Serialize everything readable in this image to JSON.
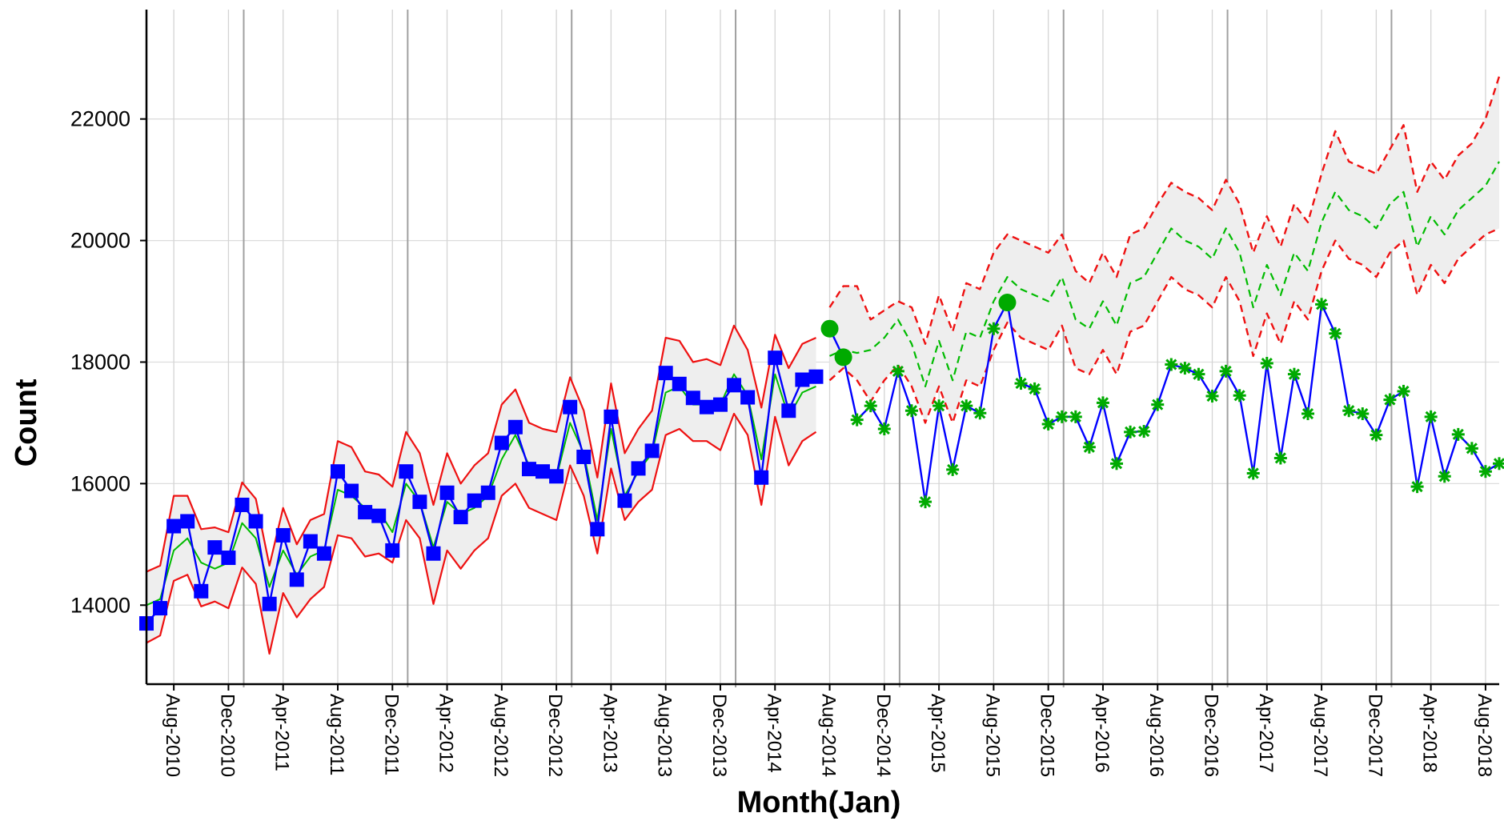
{
  "chart_data": {
    "type": "line",
    "title": "",
    "xlabel": "Month(Jan)",
    "ylabel": "Count",
    "ylim": [
      12700,
      23800
    ],
    "yticks": [
      14000,
      16000,
      18000,
      20000,
      22000
    ],
    "x_start": "Jun-2010",
    "x_end": "Sep-2018",
    "xtick_labels": [
      "Aug-2010",
      "Dec-2010",
      "Apr-2011",
      "Aug-2011",
      "Dec-2011",
      "Apr-2012",
      "Aug-2012",
      "Dec-2012",
      "Apr-2013",
      "Aug-2013",
      "Dec-2013",
      "Apr-2014",
      "Aug-2014",
      "Dec-2014",
      "Apr-2015",
      "Aug-2015",
      "Dec-2015",
      "Apr-2016",
      "Aug-2016",
      "Dec-2016",
      "Apr-2017",
      "Aug-2017",
      "Dec-2017",
      "Apr-2018",
      "Aug-2018"
    ],
    "year_boundaries": [
      "Jan-2011",
      "Jan-2012",
      "Jan-2013",
      "Jan-2014",
      "Jan-2015",
      "Jan-2016",
      "Jan-2017",
      "Jan-2018"
    ],
    "grid": true,
    "colors": {
      "actual": "#0000ff",
      "fitted": "#00bb00",
      "band": "#ee1111",
      "band_fill": "#eeeeee",
      "test_marker": "#00aa00"
    },
    "series": [
      {
        "role": "actual_train",
        "start": "Jun-2010",
        "values": [
          13700,
          13950,
          15300,
          15380,
          14230,
          14950,
          14780,
          15650,
          15380,
          14020,
          15150,
          14420,
          15050,
          14850,
          16200,
          15880,
          15530,
          15470,
          14900,
          16200,
          15700,
          14850,
          15850,
          15450,
          15720,
          15850,
          16670,
          16930,
          16240,
          16200,
          16120,
          17260,
          16440,
          15250,
          17100,
          15720,
          16250,
          16540,
          17820,
          17640,
          17410,
          17260,
          17300,
          17620,
          17420,
          16100,
          18070,
          17200,
          17710,
          17760
        ]
      },
      {
        "role": "actual_test",
        "start": "Aug-2014",
        "values": [
          18550,
          18080,
          17050,
          17280,
          16900,
          17850,
          17200,
          15700,
          17280,
          16230,
          17280,
          17160,
          18550,
          18980,
          17650,
          17560,
          16980,
          17100,
          17100,
          16600,
          17330,
          16330,
          16850,
          16860,
          17300,
          17960,
          17900,
          17800,
          17440,
          17850,
          17450,
          16170,
          17980,
          16420,
          17800,
          17150,
          18950,
          18470,
          17200,
          17150,
          16800,
          17380,
          17520,
          15950,
          17100,
          16120,
          16810,
          16580,
          16200,
          16330
        ]
      },
      {
        "role": "fitted",
        "start": "Jun-2010",
        "values": [
          14000,
          14100,
          14900,
          15100,
          14700,
          14600,
          14700,
          15350,
          15100,
          14300,
          14900,
          14500,
          14800,
          14900,
          15900,
          15800,
          15600,
          15550,
          15200,
          16000,
          15700,
          14950,
          15700,
          15500,
          15600,
          15800,
          16400,
          16800,
          16300,
          16200,
          16100,
          17000,
          16500,
          15400,
          16900,
          15800,
          16200,
          16500,
          17500,
          17600,
          17300,
          17300,
          17300,
          17800,
          17450,
          16400,
          17800,
          17100,
          17500,
          17600
        ]
      },
      {
        "role": "upper_band",
        "start": "Jun-2010",
        "values": [
          14550,
          14650,
          15800,
          15800,
          15250,
          15280,
          15200,
          16020,
          15750,
          14650,
          15600,
          15000,
          15400,
          15500,
          16700,
          16600,
          16200,
          16150,
          15950,
          16850,
          16500,
          15650,
          16500,
          16000,
          16300,
          16500,
          17300,
          17550,
          17000,
          16900,
          16850,
          17750,
          17200,
          16100,
          17650,
          16500,
          16900,
          17200,
          18400,
          18350,
          18000,
          18050,
          17950,
          18600,
          18200,
          17250,
          18450,
          17900,
          18300,
          18400
        ]
      },
      {
        "role": "lower_band",
        "start": "Jun-2010",
        "values": [
          13380,
          13500,
          14400,
          14500,
          13980,
          14060,
          13950,
          14620,
          14350,
          13200,
          14200,
          13800,
          14100,
          14300,
          15150,
          15100,
          14800,
          14850,
          14700,
          15400,
          15100,
          14020,
          14900,
          14600,
          14900,
          15100,
          15800,
          16000,
          15600,
          15500,
          15400,
          16300,
          15800,
          14850,
          16250,
          15400,
          15700,
          15900,
          16800,
          16900,
          16700,
          16700,
          16550,
          17150,
          16800,
          15650,
          17100,
          16300,
          16700,
          16850
        ]
      },
      {
        "role": "forecast_mean",
        "start": "Aug-2014",
        "values": [
          18100,
          18200,
          18150,
          18200,
          18400,
          18700,
          18300,
          17600,
          18350,
          17700,
          18500,
          18400,
          19000,
          19400,
          19200,
          19100,
          19000,
          19400,
          18700,
          18550,
          19000,
          18600,
          19300,
          19400,
          19800,
          20200,
          20000,
          19900,
          19700,
          20200,
          19800,
          18900,
          19600,
          19100,
          19800,
          19500,
          20300,
          20800,
          20500,
          20400,
          20200,
          20600,
          20800,
          19900,
          20400,
          20100,
          20500,
          20700,
          20900,
          21300
        ]
      },
      {
        "role": "forecast_upper",
        "start": "Aug-2014",
        "values": [
          18900,
          19250,
          19250,
          18700,
          18850,
          19000,
          18900,
          18300,
          19100,
          18500,
          19300,
          19200,
          19800,
          20100,
          20000,
          19900,
          19800,
          20100,
          19500,
          19300,
          19800,
          19400,
          20100,
          20200,
          20600,
          20950,
          20800,
          20700,
          20500,
          21000,
          20600,
          19800,
          20400,
          19900,
          20600,
          20300,
          21100,
          21800,
          21300,
          21200,
          21100,
          21500,
          21900,
          20800,
          21300,
          21000,
          21400,
          21600,
          22000,
          22700
        ]
      },
      {
        "role": "forecast_lower",
        "start": "Aug-2014",
        "values": [
          17700,
          17900,
          17700,
          17350,
          17700,
          17950,
          17600,
          17000,
          17600,
          17000,
          17700,
          17600,
          18200,
          18650,
          18400,
          18300,
          18200,
          18600,
          17900,
          17800,
          18200,
          17800,
          18500,
          18600,
          19000,
          19400,
          19200,
          19100,
          18900,
          19400,
          19000,
          18100,
          18800,
          18300,
          19000,
          18700,
          19500,
          20000,
          19700,
          19600,
          19400,
          19800,
          20000,
          19100,
          19600,
          19300,
          19700,
          19900,
          20100,
          20200
        ]
      }
    ]
  }
}
